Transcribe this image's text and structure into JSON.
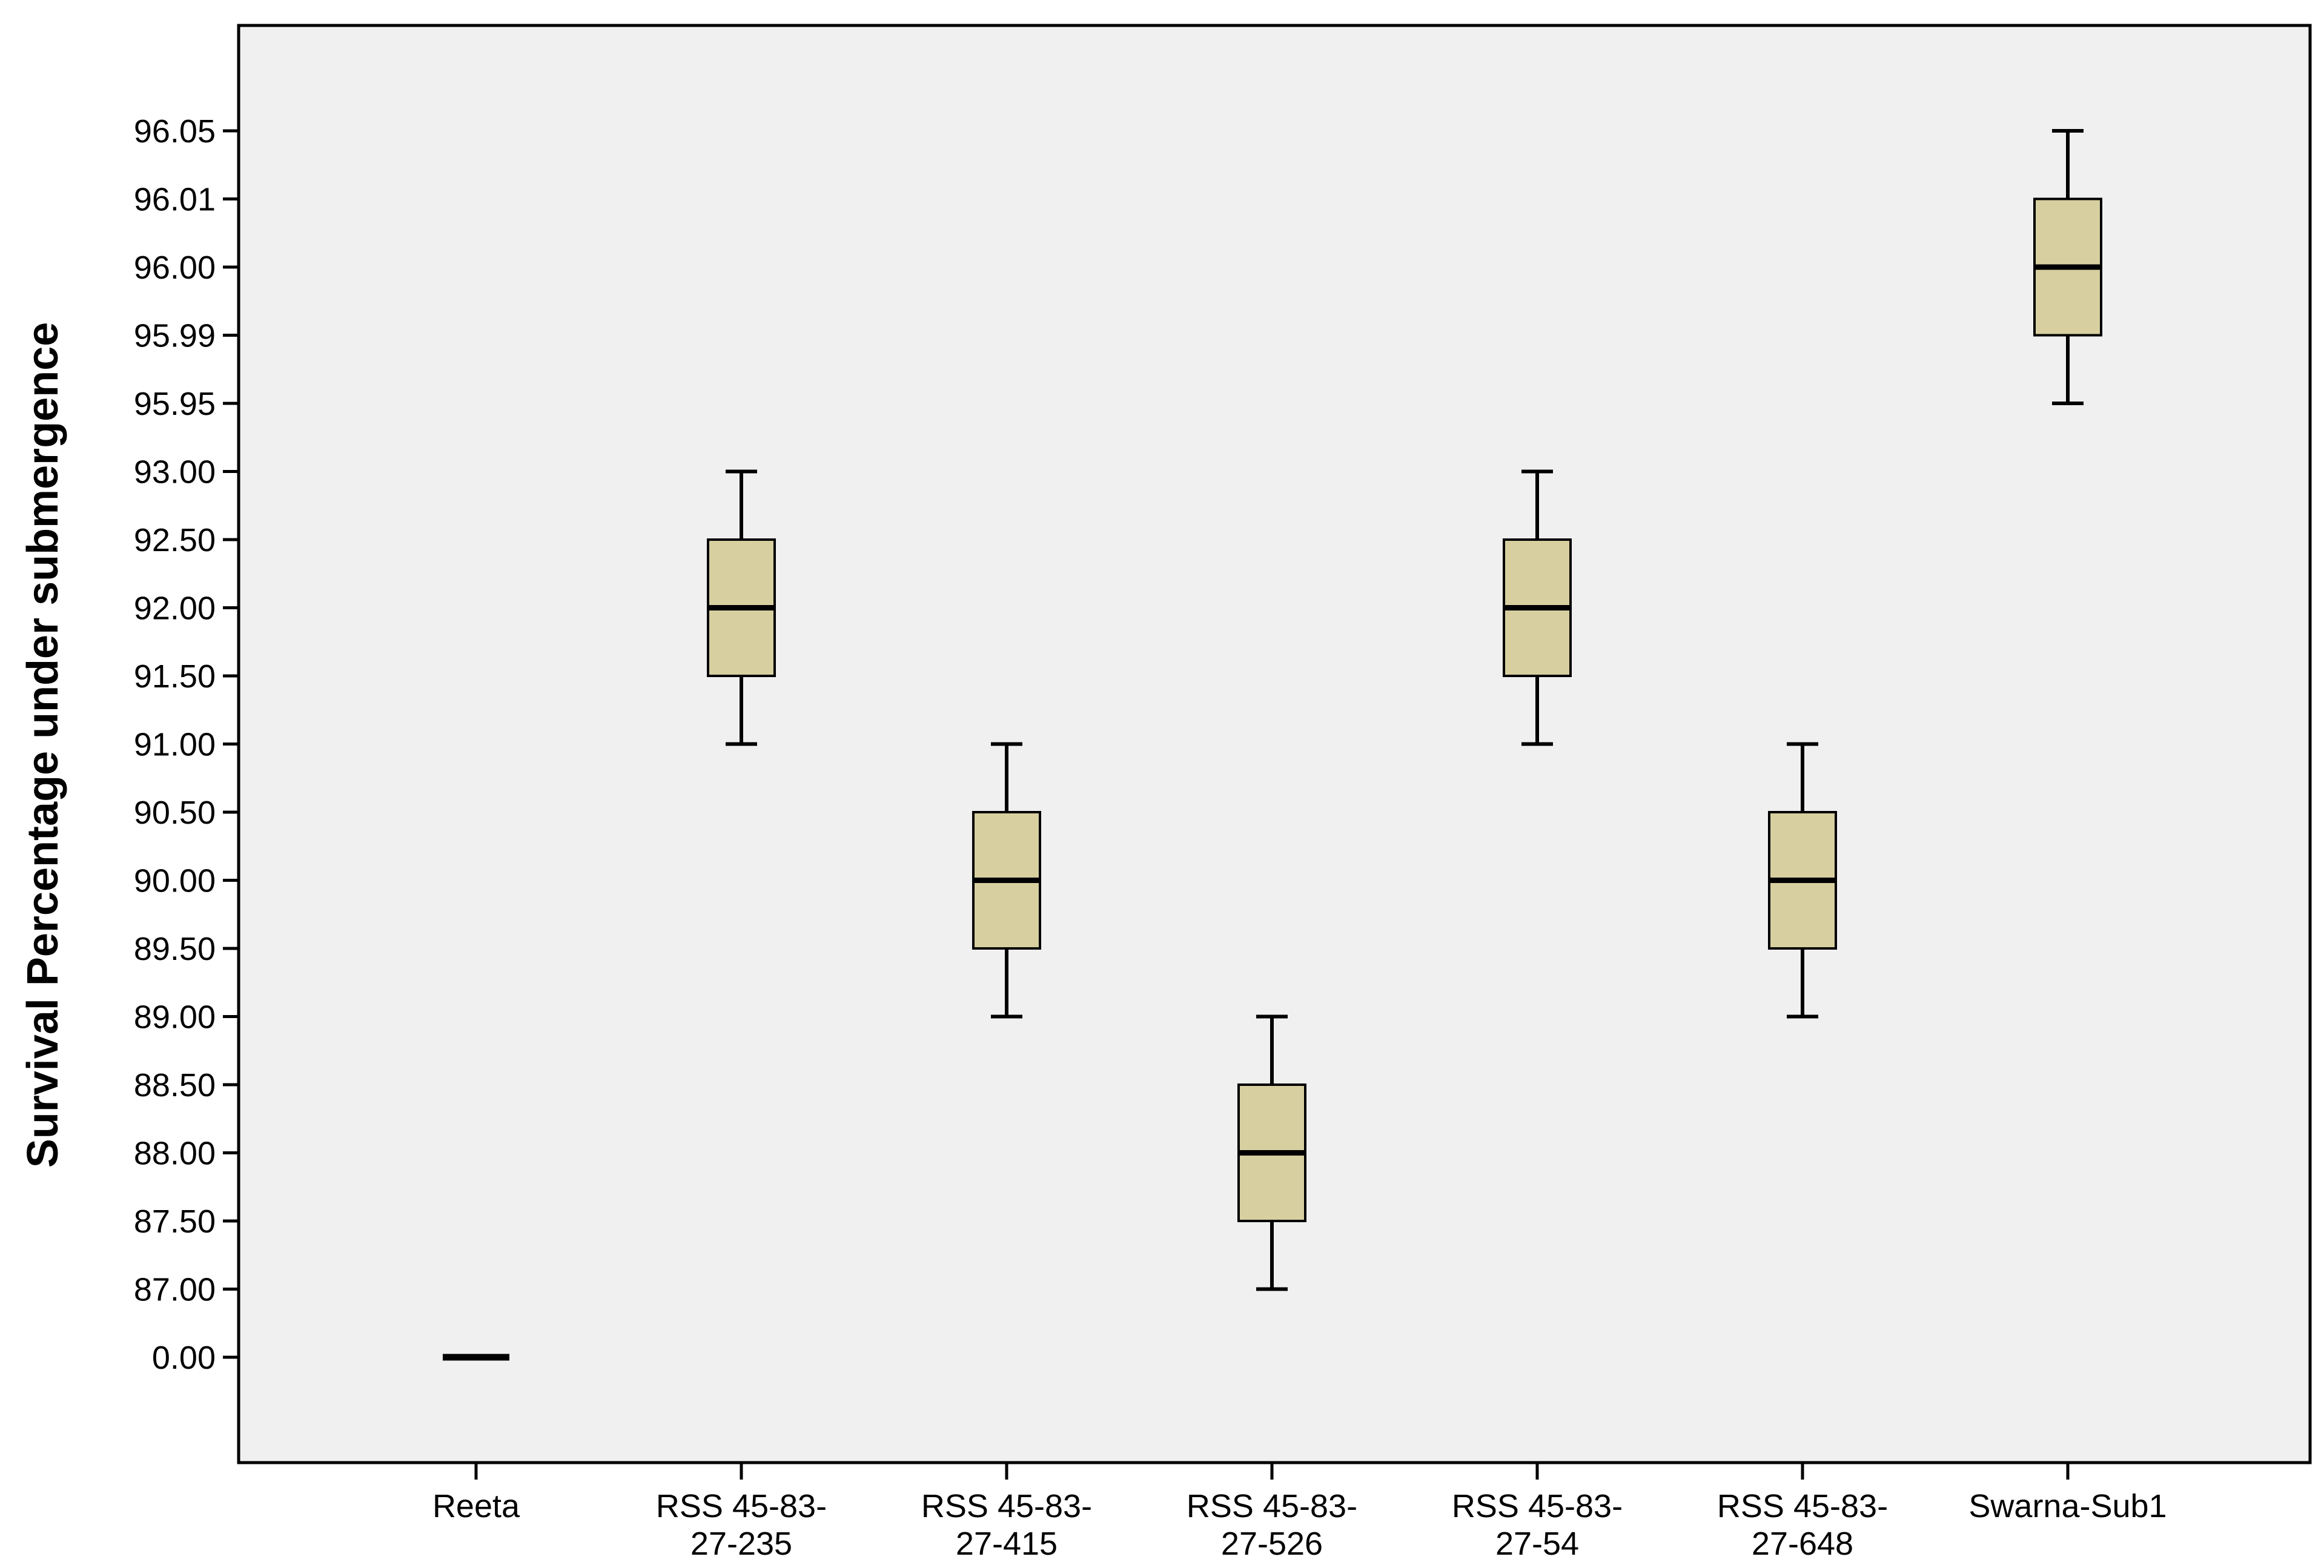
{
  "chart_data": {
    "type": "boxplot",
    "title": "",
    "xlabel": "",
    "ylabel": "Survival Percentage under submergence",
    "y_ticks": [
      "96.05",
      "96.01",
      "96.00",
      "95.99",
      "95.95",
      "93.00",
      "92.50",
      "92.00",
      "91.50",
      "91.00",
      "90.50",
      "90.00",
      "89.50",
      "89.00",
      "88.50",
      "88.00",
      "87.50",
      "87.00",
      "0.00"
    ],
    "categories": [
      {
        "lines": [
          "Reeta"
        ]
      },
      {
        "lines": [
          "RSS 45-83-",
          "27-235"
        ]
      },
      {
        "lines": [
          "RSS 45-83-",
          "27-415"
        ]
      },
      {
        "lines": [
          "RSS 45-83-",
          "27-526"
        ]
      },
      {
        "lines": [
          "RSS 45-83-",
          "27-54"
        ]
      },
      {
        "lines": [
          "RSS 45-83-",
          "27-648"
        ]
      },
      {
        "lines": [
          "Swarna-Sub1"
        ]
      }
    ],
    "boxes": [
      {
        "min": 0.0,
        "q1": 0.0,
        "median": 0.0,
        "q3": 0.0,
        "max": 0.0
      },
      {
        "min": 91.0,
        "q1": 91.5,
        "median": 92.0,
        "q3": 92.5,
        "max": 93.0
      },
      {
        "min": 89.0,
        "q1": 89.5,
        "median": 90.0,
        "q3": 90.5,
        "max": 91.0
      },
      {
        "min": 87.0,
        "q1": 87.5,
        "median": 88.0,
        "q3": 88.5,
        "max": 89.0
      },
      {
        "min": 91.0,
        "q1": 91.5,
        "median": 92.0,
        "q3": 92.5,
        "max": 93.0
      },
      {
        "min": 89.0,
        "q1": 89.5,
        "median": 90.0,
        "q3": 90.5,
        "max": 91.0
      },
      {
        "min": 95.95,
        "q1": 95.99,
        "median": 96.0,
        "q3": 96.01,
        "max": 96.05
      }
    ],
    "y_axis_scale": "categorical (tick labels evenly spaced)",
    "grid": false,
    "colors": {
      "box_fill": "#d8cfa0",
      "plot_background": "#f0f0f0",
      "line": "#000000"
    }
  }
}
